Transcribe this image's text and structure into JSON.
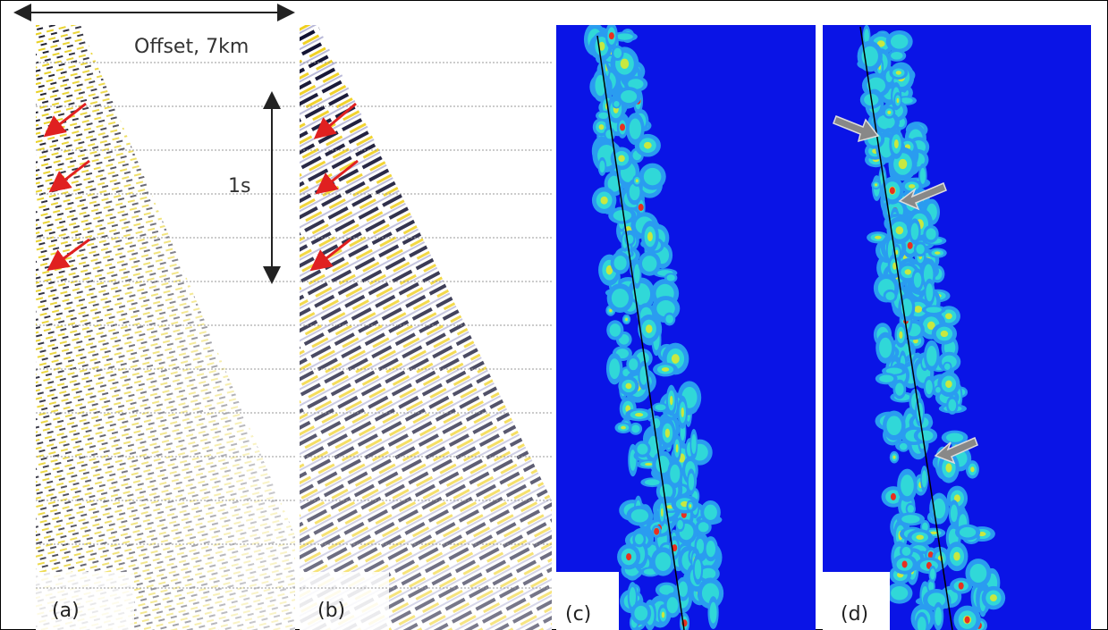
{
  "annotations": {
    "offset": "Offset, 7km",
    "time": "1s"
  },
  "panels": [
    {
      "label": "(a)"
    },
    {
      "label": "(b)"
    },
    {
      "label": "(c)"
    },
    {
      "label": "(d)"
    }
  ]
}
